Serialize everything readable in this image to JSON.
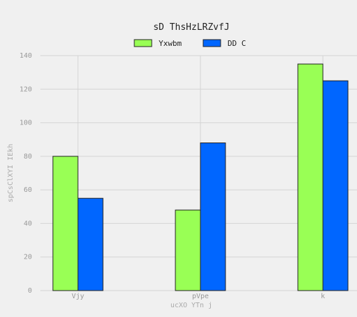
{
  "chart_data": {
    "type": "bar",
    "title": "sD ThsHzLRZvfJ",
    "xlabel": "ucXO YTn j",
    "ylabel": "spCsClXYI IEkh",
    "categories": [
      "Vjy",
      "pVpe",
      "k"
    ],
    "series": [
      {
        "name": "Yxwbm",
        "values": [
          80,
          48,
          135
        ],
        "color": "#99ff55"
      },
      {
        "name": "DD C",
        "values": [
          55,
          88,
          125
        ],
        "color": "#0066ff"
      }
    ],
    "ylim": [
      0,
      140
    ],
    "yticks": [
      0,
      20,
      40,
      60,
      80,
      100,
      120,
      140
    ],
    "grid": true,
    "legend_position": "top-center"
  }
}
